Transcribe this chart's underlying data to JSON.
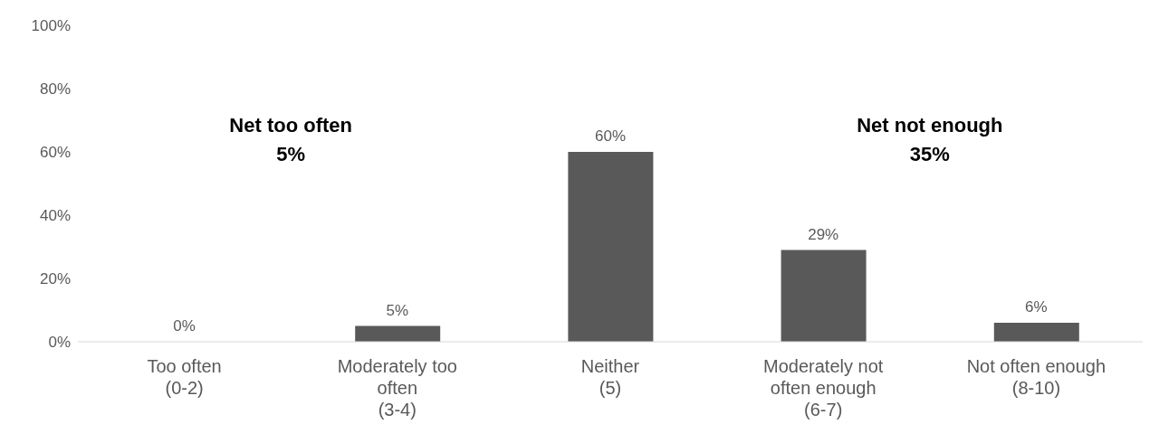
{
  "chart_data": {
    "type": "bar",
    "categories": [
      "Too often (0-2)",
      "Moderately too often (3-4)",
      "Neither (5)",
      "Moderately not often enough (6-7)",
      "Not often enough (8-10)"
    ],
    "values": [
      0,
      5,
      60,
      29,
      6
    ],
    "value_labels": [
      "0%",
      "5%",
      "60%",
      "29%",
      "6%"
    ],
    "color": "#595959",
    "ylim": [
      0,
      100
    ],
    "yticks": [
      {
        "value": 0,
        "label": "0%"
      },
      {
        "value": 20,
        "label": "20%"
      },
      {
        "value": 40,
        "label": "40%"
      },
      {
        "value": 60,
        "label": "60%"
      },
      {
        "value": 80,
        "label": "80%"
      },
      {
        "value": 100,
        "label": "100%"
      }
    ],
    "grid": false,
    "legend": false,
    "annotations": [
      "Net too often\n5%",
      "Net not enough\n35%"
    ]
  }
}
